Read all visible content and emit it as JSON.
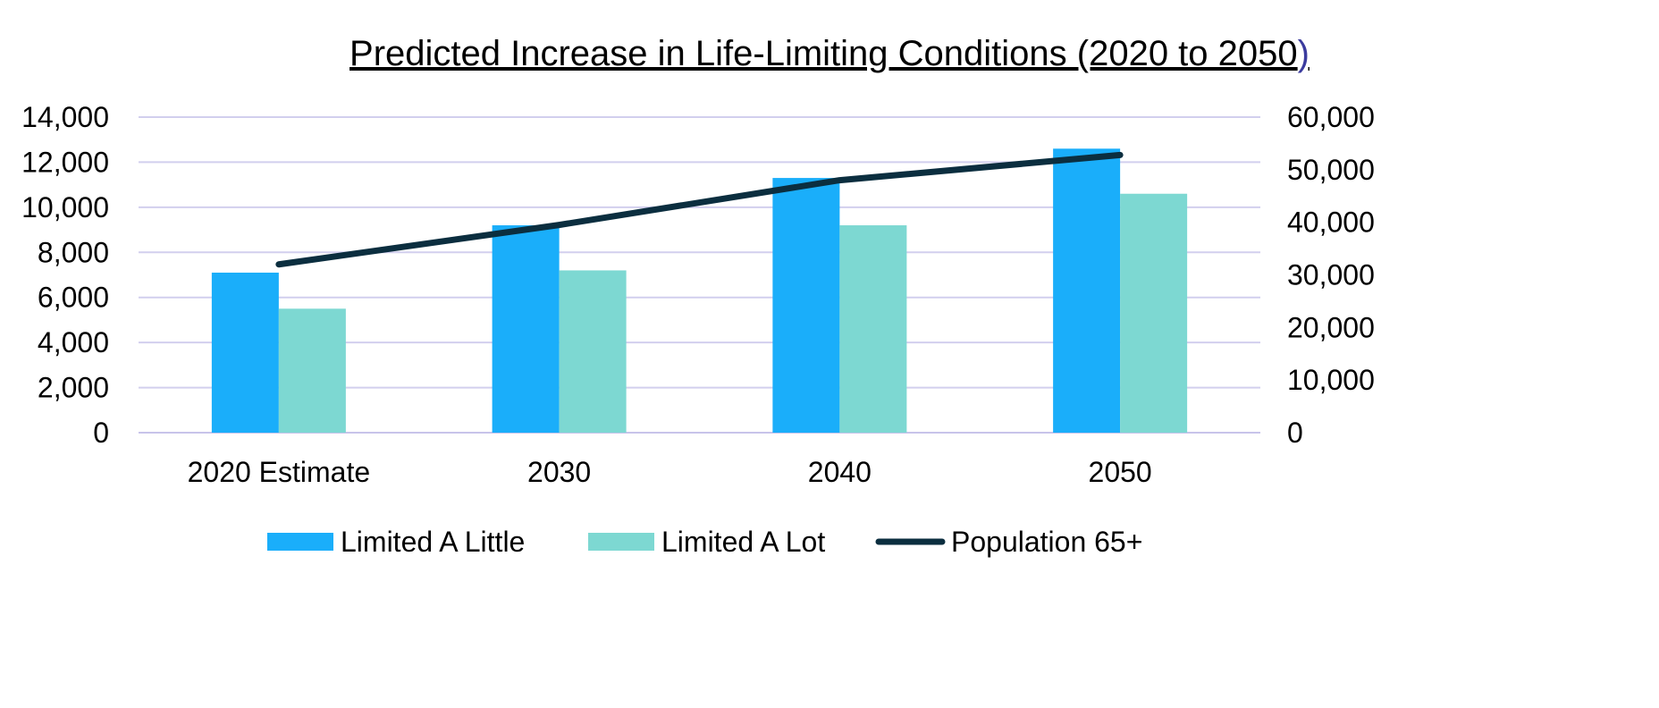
{
  "chart_data": {
    "type": "bar",
    "title_main": "Predicted Increase in Life-Limiting Conditions (2020 to 2050",
    "title_close": ")",
    "categories": [
      "2020 Estimate",
      "2030",
      "2040",
      "2050"
    ],
    "series": [
      {
        "name": "Limited A Little",
        "type": "bar",
        "axis": "left",
        "color": "#1aaefa",
        "values": [
          7100,
          9200,
          11300,
          12600
        ]
      },
      {
        "name": "Limited A Lot",
        "type": "bar",
        "axis": "left",
        "color": "#7dd8d2",
        "values": [
          5500,
          7200,
          9200,
          10600
        ]
      },
      {
        "name": "Population 65+",
        "type": "line",
        "axis": "right",
        "color": "#0b2e3f",
        "values": [
          32000,
          39500,
          48000,
          52800
        ]
      }
    ],
    "y_left": {
      "min": 0,
      "max": 14000,
      "step": 2000,
      "tick_labels": [
        "0",
        "2,000",
        "4,000",
        "6,000",
        "8,000",
        "10,000",
        "12,000",
        "14,000"
      ]
    },
    "y_right": {
      "min": 0,
      "max": 60000,
      "step": 10000,
      "tick_labels": [
        "0",
        "10,000",
        "20,000",
        "30,000",
        "40,000",
        "50,000",
        "60,000"
      ]
    },
    "grid": true,
    "gridline_color": "#d2cfee",
    "title_accent_color": "#3b3b9e",
    "legend_position": "bottom"
  }
}
